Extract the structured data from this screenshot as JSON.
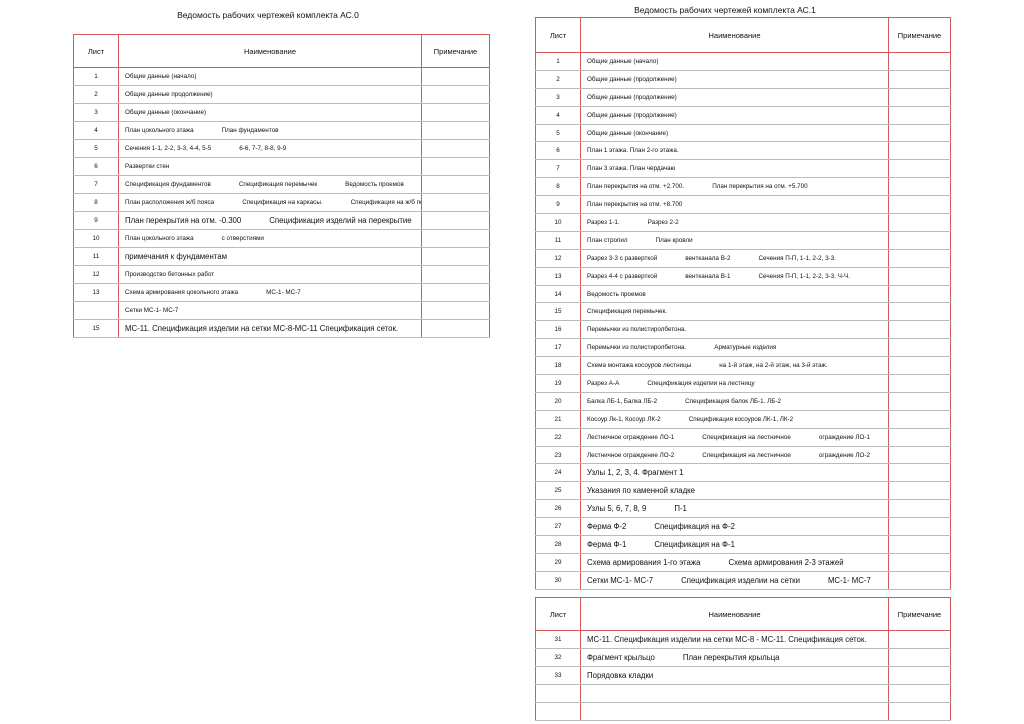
{
  "sheet_ac0": {
    "title": "Ведомость рабочих чертежей комплекта АС.0",
    "header": [
      "Лист",
      "Наименование",
      "Примечание"
    ],
    "rows": [
      {
        "num": 1,
        "items": [
          "Общие данные (начало)"
        ]
      },
      {
        "num": 2,
        "items": [
          "Общие данные продолжение)"
        ]
      },
      {
        "num": 3,
        "items": [
          "Общие данные (окончание)"
        ]
      },
      {
        "num": 4,
        "items": [
          "План цокольного этажа",
          "План фундаментов"
        ]
      },
      {
        "num": 5,
        "items": [
          "Сечения 1-1, 2-2, 3-3, 4-4, 5-5",
          "6-6, 7-7, 8-8, 9-9"
        ]
      },
      {
        "num": 6,
        "items": [
          "Развертки стен"
        ]
      },
      {
        "num": 7,
        "items": [
          "Спецификация фундаментов",
          "Спецификация перемычек",
          "Ведомость проемов"
        ]
      },
      {
        "num": 8,
        "items": [
          "План расположения ж/б пояса",
          "Спецификация на каркасы.",
          "Спецификация на ж/б пояс"
        ]
      },
      {
        "num": 9,
        "items": [
          "План перекрытия на отм. -0.300",
          "Спецификация изделий на перекрытие"
        ]
      },
      {
        "num": 10,
        "items": [
          "План цокольного этажа",
          "с отверстиями"
        ]
      },
      {
        "num": 11,
        "items": [
          "примечания к фундаментам"
        ]
      },
      {
        "num": 12,
        "items": [
          "Производство бетонных работ"
        ]
      },
      {
        "num": 13,
        "items": [
          "Схема армирования цокольного этажа",
          "МС-1- МС-7"
        ]
      },
      {
        "items": [
          "Сетки МС-1- МС-7"
        ]
      },
      {
        "num": 15,
        "items": [
          "МС-11. Спецификация изделии на сетки МС-8-МС-11  Спецификация сеток."
        ]
      }
    ]
  },
  "sheet_ac1": {
    "title": "Ведомость рабочих чертежей комплекта АС.1",
    "header": [
      "Лист",
      "Наименование",
      "Примечание"
    ],
    "rows": [
      {
        "num": 1,
        "items": [
          "Общие данные (начало)"
        ]
      },
      {
        "num": 2,
        "items": [
          "Общие данные (продолжение)"
        ]
      },
      {
        "num": 3,
        "items": [
          "Общие данные (продолжение)"
        ]
      },
      {
        "num": 4,
        "items": [
          "Общие данные (продолжение)"
        ]
      },
      {
        "num": 5,
        "items": [
          "Общие данные (окончание)"
        ]
      },
      {
        "num": 6,
        "items": [
          "План 1 этажа. План 2-го этажа."
        ]
      },
      {
        "num": 7,
        "items": [
          "План 3 этажа. План чердачаю"
        ]
      },
      {
        "num": 8,
        "items": [
          "План перекрытия на отм. +2.700.",
          "План перекрытия на отм. +5.700"
        ]
      },
      {
        "num": 9,
        "items": [
          "План перекрытия на отм. +8.700"
        ]
      },
      {
        "num": 10,
        "items": [
          "Разрез 1-1.",
          "Разрез 2-2"
        ]
      },
      {
        "num": 11,
        "items": [
          "План стропил",
          "План кровли"
        ]
      },
      {
        "num": 12,
        "items": [
          "Разрез 3-3 с разверткой",
          "вентканала В-2",
          "Сечения П-П, 1-1, 2-2, 3-3."
        ]
      },
      {
        "num": 13,
        "items": [
          "Разрез 4-4 с разверткой",
          "вентканала В-1",
          "Сечения П-П, 1-1, 2-2, 3-3. Ч-Ч."
        ]
      },
      {
        "num": 14,
        "items": [
          "Ведомость проемов"
        ]
      },
      {
        "num": 15,
        "items": [
          "Спецификация перемычек."
        ]
      },
      {
        "num": 16,
        "items": [
          "Перемычки из полистиролбетона."
        ]
      },
      {
        "num": 17,
        "items": [
          "Перемычки из полистиролбетона.",
          "Арматурные изделия"
        ]
      },
      {
        "num": 18,
        "items": [
          "Схема монтажа косоуров лестницы",
          "на 1-й этаж, на 2-й этаж, на 3-й этаж."
        ]
      },
      {
        "num": 19,
        "items": [
          "Разрез А-А",
          "Спецификация изделии на лестницу"
        ]
      },
      {
        "num": 20,
        "items": [
          "Балка ЛБ-1, Балка ЛБ-2",
          "Спецификация балок ЛБ-1. ЛБ-2"
        ]
      },
      {
        "num": 21,
        "items": [
          "Косоур Лк-1, Косоур ЛК-2",
          "Спецификация косоуров ЛК-1, ЛК-2"
        ]
      },
      {
        "num": 22,
        "items": [
          "Лестничное ограждение ЛО-1",
          "Спецификация на лестничное",
          "ограждение ЛО-1"
        ]
      },
      {
        "num": 23,
        "items": [
          "Лестничное ограждение ЛО-2",
          "Спецификация на лестничное",
          "ограждение ЛО-2"
        ]
      },
      {
        "num": 24,
        "items": [
          "Узлы 1, 2, 3, 4.  Фрагмент 1"
        ]
      },
      {
        "num": 25,
        "items": [
          "Указания по каменной кладке"
        ]
      },
      {
        "num": 26,
        "items": [
          "Узлы 5, 6, 7, 8, 9",
          "П-1"
        ]
      },
      {
        "num": 27,
        "items": [
          "Ферма Ф-2",
          "Спецификация на Ф-2"
        ]
      },
      {
        "num": 28,
        "items": [
          "Ферма Ф-1",
          "Спецификация на Ф-1"
        ]
      },
      {
        "num": 29,
        "items": [
          "Схема армирования 1-го этажа",
          "Схема армирования 2-3 этажей"
        ]
      },
      {
        "num": 30,
        "items": [
          "Сетки МС-1- МС-7",
          "Спецификация изделии на сетки",
          "МС-1- МС-7"
        ]
      }
    ]
  },
  "sheet_ac1_cont": {
    "header": [
      "Лист",
      "Наименование",
      "Примечание"
    ],
    "rows": [
      {
        "num": 31,
        "items": [
          "МС-11. Спецификация изделии на сетки МС-8 - МС-11.  Спецификация сеток."
        ]
      },
      {
        "num": 32,
        "items": [
          "Фрагмент крыльцо",
          "План перекрытия крыльца"
        ]
      },
      {
        "num": 33,
        "items": [
          "Порядовка кладки"
        ]
      }
    ]
  }
}
